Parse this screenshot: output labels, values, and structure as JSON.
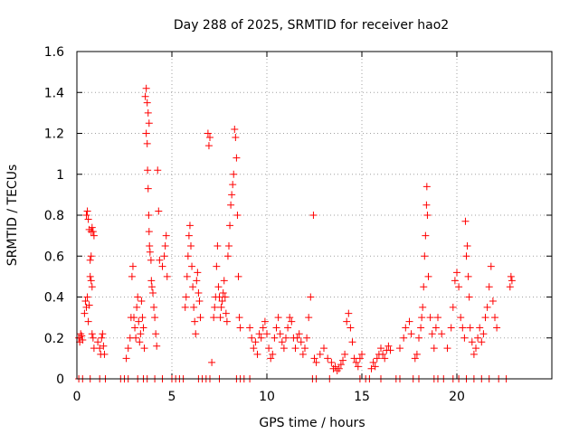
{
  "chart_data": {
    "type": "scatter",
    "title": "Day 288 of 2025, SRMTID for receiver hao2",
    "xlabel": "GPS time / hours",
    "ylabel": "SRMTID / TECUs",
    "xlim": [
      0,
      25
    ],
    "ylim": [
      0,
      1.6
    ],
    "x_ticks": [
      0,
      5,
      10,
      15,
      20
    ],
    "x_tick_labels": [
      "0",
      "5",
      "10",
      "15",
      "20"
    ],
    "y_ticks": [
      0,
      0.2,
      0.4,
      0.6,
      0.8,
      1,
      1.2,
      1.4,
      1.6
    ],
    "y_tick_labels": [
      "0",
      "0.2",
      "0.4",
      "0.6",
      "0.8",
      "1",
      "1.2",
      "1.4",
      "1.6"
    ],
    "grid": true,
    "legend": "none",
    "series": [
      {
        "marker": "plus",
        "color": "#ff0000",
        "points": [
          [
            0.1,
            0.2
          ],
          [
            0.15,
            0.18
          ],
          [
            0.2,
            0.22
          ],
          [
            0.25,
            0.21
          ],
          [
            0.3,
            0.19
          ],
          [
            0.4,
            0.32
          ],
          [
            0.45,
            0.38
          ],
          [
            0.5,
            0.35
          ],
          [
            0.55,
            0.4
          ],
          [
            0.6,
            0.28
          ],
          [
            0.65,
            0.36
          ],
          [
            0.5,
            0.8
          ],
          [
            0.55,
            0.82
          ],
          [
            0.6,
            0.78
          ],
          [
            0.65,
            0.73
          ],
          [
            0.7,
            0.58
          ],
          [
            0.75,
            0.6
          ],
          [
            0.7,
            0.5
          ],
          [
            0.75,
            0.48
          ],
          [
            0.8,
            0.45
          ],
          [
            0.8,
            0.22
          ],
          [
            0.85,
            0.2
          ],
          [
            0.9,
            0.15
          ],
          [
            0.75,
            0.72
          ],
          [
            0.8,
            0.74
          ],
          [
            0.85,
            0.72
          ],
          [
            0.9,
            0.7
          ],
          [
            1.1,
            0.18
          ],
          [
            1.2,
            0.15
          ],
          [
            1.25,
            0.12
          ],
          [
            1.3,
            0.2
          ],
          [
            1.35,
            0.22
          ],
          [
            1.4,
            0.16
          ],
          [
            1.45,
            0.12
          ],
          [
            2.6,
            0.1
          ],
          [
            2.7,
            0.15
          ],
          [
            2.8,
            0.2
          ],
          [
            2.85,
            0.3
          ],
          [
            2.9,
            0.5
          ],
          [
            2.95,
            0.55
          ],
          [
            3.0,
            0.3
          ],
          [
            3.05,
            0.25
          ],
          [
            3.1,
            0.2
          ],
          [
            3.15,
            0.35
          ],
          [
            3.2,
            0.4
          ],
          [
            3.25,
            0.28
          ],
          [
            3.3,
            0.18
          ],
          [
            3.35,
            0.22
          ],
          [
            3.4,
            0.38
          ],
          [
            3.45,
            0.3
          ],
          [
            3.5,
            0.25
          ],
          [
            3.55,
            0.15
          ],
          [
            3.6,
            1.38
          ],
          [
            3.65,
            1.42
          ],
          [
            3.7,
            1.35
          ],
          [
            3.75,
            1.3
          ],
          [
            3.8,
            1.25
          ],
          [
            3.65,
            1.2
          ],
          [
            3.7,
            1.15
          ],
          [
            3.72,
            1.02
          ],
          [
            3.75,
            0.93
          ],
          [
            3.78,
            0.8
          ],
          [
            3.8,
            0.72
          ],
          [
            3.82,
            0.65
          ],
          [
            3.85,
            0.62
          ],
          [
            3.9,
            0.58
          ],
          [
            3.92,
            0.48
          ],
          [
            3.95,
            0.45
          ],
          [
            4.0,
            0.42
          ],
          [
            4.05,
            0.35
          ],
          [
            4.1,
            0.3
          ],
          [
            4.15,
            0.22
          ],
          [
            4.2,
            0.16
          ],
          [
            4.25,
            1.02
          ],
          [
            4.3,
            0.82
          ],
          [
            4.35,
            0.58
          ],
          [
            4.5,
            0.55
          ],
          [
            4.6,
            0.6
          ],
          [
            4.65,
            0.65
          ],
          [
            4.7,
            0.7
          ],
          [
            4.75,
            0.5
          ],
          [
            5.7,
            0.35
          ],
          [
            5.75,
            0.4
          ],
          [
            5.8,
            0.5
          ],
          [
            5.85,
            0.6
          ],
          [
            5.9,
            0.7
          ],
          [
            5.95,
            0.75
          ],
          [
            6.0,
            0.65
          ],
          [
            6.05,
            0.55
          ],
          [
            6.1,
            0.45
          ],
          [
            6.15,
            0.35
          ],
          [
            6.2,
            0.28
          ],
          [
            6.25,
            0.22
          ],
          [
            6.3,
            0.48
          ],
          [
            6.35,
            0.52
          ],
          [
            6.4,
            0.42
          ],
          [
            6.45,
            0.38
          ],
          [
            6.5,
            0.3
          ],
          [
            6.9,
            1.2
          ],
          [
            7.0,
            1.18
          ],
          [
            6.95,
            1.14
          ],
          [
            7.1,
            0.08
          ],
          [
            7.2,
            0.3
          ],
          [
            7.25,
            0.35
          ],
          [
            7.3,
            0.4
          ],
          [
            7.35,
            0.55
          ],
          [
            7.4,
            0.65
          ],
          [
            7.45,
            0.45
          ],
          [
            7.5,
            0.4
          ],
          [
            7.55,
            0.3
          ],
          [
            7.6,
            0.35
          ],
          [
            7.65,
            0.38
          ],
          [
            7.7,
            0.42
          ],
          [
            7.75,
            0.48
          ],
          [
            7.8,
            0.4
          ],
          [
            7.85,
            0.32
          ],
          [
            7.9,
            0.28
          ],
          [
            7.95,
            0.6
          ],
          [
            8.0,
            0.65
          ],
          [
            8.05,
            0.75
          ],
          [
            8.1,
            0.85
          ],
          [
            8.15,
            0.9
          ],
          [
            8.2,
            0.95
          ],
          [
            8.25,
            1.0
          ],
          [
            8.3,
            1.22
          ],
          [
            8.35,
            1.18
          ],
          [
            8.4,
            1.08
          ],
          [
            8.45,
            0.8
          ],
          [
            8.5,
            0.5
          ],
          [
            8.55,
            0.3
          ],
          [
            8.6,
            0.25
          ],
          [
            9.1,
            0.25
          ],
          [
            9.2,
            0.2
          ],
          [
            9.3,
            0.15
          ],
          [
            9.4,
            0.18
          ],
          [
            9.5,
            0.12
          ],
          [
            9.6,
            0.22
          ],
          [
            9.7,
            0.2
          ],
          [
            9.8,
            0.25
          ],
          [
            9.9,
            0.28
          ],
          [
            10.0,
            0.22
          ],
          [
            10.1,
            0.15
          ],
          [
            10.2,
            0.1
          ],
          [
            10.3,
            0.12
          ],
          [
            10.4,
            0.2
          ],
          [
            10.5,
            0.25
          ],
          [
            10.6,
            0.3
          ],
          [
            10.7,
            0.22
          ],
          [
            10.8,
            0.18
          ],
          [
            10.9,
            0.15
          ],
          [
            11.0,
            0.2
          ],
          [
            11.1,
            0.25
          ],
          [
            11.2,
            0.3
          ],
          [
            11.3,
            0.28
          ],
          [
            11.4,
            0.2
          ],
          [
            11.5,
            0.15
          ],
          [
            11.6,
            0.2
          ],
          [
            11.7,
            0.22
          ],
          [
            11.8,
            0.18
          ],
          [
            11.9,
            0.12
          ],
          [
            12.0,
            0.15
          ],
          [
            12.1,
            0.2
          ],
          [
            12.2,
            0.3
          ],
          [
            12.3,
            0.4
          ],
          [
            12.45,
            0.8
          ],
          [
            12.5,
            0.1
          ],
          [
            12.6,
            0.08
          ],
          [
            12.8,
            0.12
          ],
          [
            13.0,
            0.15
          ],
          [
            13.2,
            0.1
          ],
          [
            13.4,
            0.08
          ],
          [
            13.5,
            0.05
          ],
          [
            13.6,
            0.06
          ],
          [
            13.7,
            0.04
          ],
          [
            13.8,
            0.05
          ],
          [
            13.9,
            0.07
          ],
          [
            14.0,
            0.09
          ],
          [
            14.1,
            0.12
          ],
          [
            14.2,
            0.28
          ],
          [
            14.3,
            0.32
          ],
          [
            14.4,
            0.25
          ],
          [
            14.5,
            0.18
          ],
          [
            14.6,
            0.1
          ],
          [
            14.7,
            0.08
          ],
          [
            14.8,
            0.06
          ],
          [
            14.9,
            0.1
          ],
          [
            15.0,
            0.12
          ],
          [
            15.5,
            0.05
          ],
          [
            15.6,
            0.08
          ],
          [
            15.7,
            0.06
          ],
          [
            15.8,
            0.1
          ],
          [
            15.9,
            0.12
          ],
          [
            16.0,
            0.15
          ],
          [
            16.1,
            0.12
          ],
          [
            16.2,
            0.1
          ],
          [
            16.3,
            0.14
          ],
          [
            16.4,
            0.16
          ],
          [
            16.5,
            0.14
          ],
          [
            17.0,
            0.15
          ],
          [
            17.2,
            0.2
          ],
          [
            17.3,
            0.25
          ],
          [
            17.5,
            0.28
          ],
          [
            17.6,
            0.22
          ],
          [
            17.8,
            0.1
          ],
          [
            17.9,
            0.12
          ],
          [
            18.0,
            0.2
          ],
          [
            18.1,
            0.25
          ],
          [
            18.15,
            0.3
          ],
          [
            18.2,
            0.35
          ],
          [
            18.25,
            0.45
          ],
          [
            18.3,
            0.6
          ],
          [
            18.35,
            0.7
          ],
          [
            18.4,
            0.85
          ],
          [
            18.42,
            0.94
          ],
          [
            18.45,
            0.8
          ],
          [
            18.5,
            0.5
          ],
          [
            18.6,
            0.3
          ],
          [
            18.7,
            0.22
          ],
          [
            18.8,
            0.15
          ],
          [
            18.9,
            0.25
          ],
          [
            19.0,
            0.3
          ],
          [
            19.2,
            0.22
          ],
          [
            19.5,
            0.15
          ],
          [
            19.7,
            0.25
          ],
          [
            19.8,
            0.35
          ],
          [
            19.9,
            0.48
          ],
          [
            20.0,
            0.52
          ],
          [
            20.1,
            0.45
          ],
          [
            20.2,
            0.3
          ],
          [
            20.3,
            0.25
          ],
          [
            20.4,
            0.2
          ],
          [
            20.45,
            0.77
          ],
          [
            20.5,
            0.6
          ],
          [
            20.55,
            0.65
          ],
          [
            20.6,
            0.5
          ],
          [
            20.65,
            0.4
          ],
          [
            20.7,
            0.25
          ],
          [
            20.8,
            0.18
          ],
          [
            20.9,
            0.12
          ],
          [
            21.0,
            0.15
          ],
          [
            21.1,
            0.2
          ],
          [
            21.2,
            0.25
          ],
          [
            21.3,
            0.18
          ],
          [
            21.4,
            0.22
          ],
          [
            21.5,
            0.3
          ],
          [
            21.6,
            0.35
          ],
          [
            21.7,
            0.45
          ],
          [
            21.8,
            0.55
          ],
          [
            21.9,
            0.38
          ],
          [
            22.0,
            0.3
          ],
          [
            22.1,
            0.25
          ],
          [
            22.8,
            0.45
          ],
          [
            22.85,
            0.5
          ],
          [
            22.9,
            0.48
          ],
          [
            0.1,
            0
          ],
          [
            0.3,
            0
          ],
          [
            0.7,
            0
          ],
          [
            1.2,
            0
          ],
          [
            1.5,
            0
          ],
          [
            2.3,
            0
          ],
          [
            2.5,
            0
          ],
          [
            2.7,
            0
          ],
          [
            3.2,
            0
          ],
          [
            3.5,
            0
          ],
          [
            3.7,
            0
          ],
          [
            4.1,
            0
          ],
          [
            4.5,
            0
          ],
          [
            5.0,
            0
          ],
          [
            5.2,
            0
          ],
          [
            5.4,
            0
          ],
          [
            5.6,
            0
          ],
          [
            6.4,
            0
          ],
          [
            6.6,
            0
          ],
          [
            6.8,
            0
          ],
          [
            7.0,
            0
          ],
          [
            7.5,
            0
          ],
          [
            8.4,
            0
          ],
          [
            8.6,
            0
          ],
          [
            8.8,
            0
          ],
          [
            9.1,
            0
          ],
          [
            12.4,
            0
          ],
          [
            12.6,
            0
          ],
          [
            13.3,
            0
          ],
          [
            14.9,
            0
          ],
          [
            15.2,
            0
          ],
          [
            15.4,
            0
          ],
          [
            16.0,
            0
          ],
          [
            16.8,
            0
          ],
          [
            17.0,
            0
          ],
          [
            17.7,
            0
          ],
          [
            18.0,
            0
          ],
          [
            18.8,
            0
          ],
          [
            19.0,
            0
          ],
          [
            19.3,
            0
          ],
          [
            19.8,
            0
          ],
          [
            20.1,
            0
          ],
          [
            20.5,
            0
          ],
          [
            20.9,
            0
          ],
          [
            21.3,
            0
          ],
          [
            21.7,
            0
          ],
          [
            22.2,
            0
          ],
          [
            22.6,
            0
          ]
        ]
      }
    ]
  }
}
